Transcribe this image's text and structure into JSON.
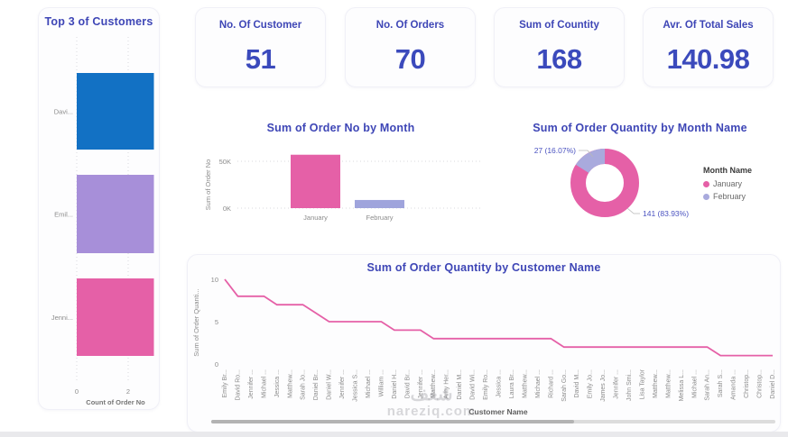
{
  "watermark": {
    "line1": "شغف",
    "line2": "nareziq.com"
  },
  "colors": {
    "title_indigo": "#3e46b6",
    "kpi_value": "#3b4abc",
    "pink": "#e560a7",
    "blue": "#1271c4",
    "purple": "#a78fd9",
    "periwinkle": "#9fa4dc",
    "donut_purple": "#a9aadd",
    "axis_gray": "#8c8c8c",
    "gridline": "#d9d9de",
    "scroll_track": "#dcdcdc",
    "scroll_thumb": "#b3b3b3"
  },
  "kpi_cards": [
    {
      "label": "No. Of Customer",
      "value": "51"
    },
    {
      "label": "No. Of Orders",
      "value": "70"
    },
    {
      "label": "Sum of Countity",
      "value": "168"
    },
    {
      "label": "Avr. Of Total Sales",
      "value": "140.98"
    }
  ],
  "chart_data": [
    {
      "id": "top3-customers",
      "type": "bar",
      "orientation": "horizontal",
      "title": "Top 3 of Customers",
      "categories": [
        "Davi...",
        "Emil...",
        "Jenni..."
      ],
      "values": [
        3,
        3,
        3
      ],
      "bar_colors": [
        "#1271c4",
        "#a78fd9",
        "#e560a7"
      ],
      "xlabel": "Count of Order No",
      "xticks": [
        0,
        2
      ],
      "xlim": [
        0,
        3
      ],
      "grid": "dotted-vertical"
    },
    {
      "id": "order-no-by-month",
      "type": "bar",
      "orientation": "vertical",
      "title": "Sum of Order No by Month",
      "categories": [
        "January",
        "February"
      ],
      "values": [
        57000,
        8700
      ],
      "bar_colors": [
        "#e560a7",
        "#9fa4dc"
      ],
      "ylabel": "Sum of Order No",
      "yticks": [
        {
          "label": "0K",
          "value": 0
        },
        {
          "label": "50K",
          "value": 50000
        }
      ],
      "ylim": [
        0,
        62000
      ],
      "grid": "dotted-horizontal"
    },
    {
      "id": "order-qty-by-month",
      "type": "pie",
      "title": "Sum of Order Quantity by Month Name",
      "legend_title": "Month Name",
      "legend_position": "right",
      "slices": [
        {
          "name": "January",
          "value": 141,
          "pct": 83.93,
          "callout": "141 (83.93%)",
          "color": "#e560a7"
        },
        {
          "name": "February",
          "value": 27,
          "pct": 16.07,
          "callout": "27 (16.07%)",
          "color": "#a9aadd"
        }
      ]
    },
    {
      "id": "order-qty-by-customer",
      "type": "line",
      "title": "Sum of Order Quantity by Customer Name",
      "ylabel": "Sum of Order Quanti...",
      "xlabel": "Customer Name",
      "yticks": [
        0,
        5,
        10
      ],
      "ylim": [
        0,
        10
      ],
      "line_color": "#e560a7",
      "categories": [
        "Emily Br...",
        "David Ro...",
        "Jennifer ...",
        "Michael ...",
        "Jessica ...",
        "Matthew...",
        "Sarah Jo...",
        "Daniel Br...",
        "Daniel W...",
        "Jennifer ...",
        "Jessica S...",
        "Michael ...",
        "William ...",
        "Daniel H...",
        "David Br...",
        "Jennifer ...",
        "Matthew...",
        "Amy Her...",
        "Daniel M...",
        "David Wi...",
        "Emily Ro...",
        "Jessica ...",
        "Laura Br...",
        "Matthew...",
        "Michael ...",
        "Richard ...",
        "Sarah Go...",
        "David M...",
        "Emily Jo...",
        "James Jo...",
        "Jennifer ...",
        "John Smi...",
        "Lisa Taylor",
        "Matthew...",
        "Matthew...",
        "Melissa L...",
        "Michael ...",
        "Sarah An...",
        "Sarah S...",
        "Amanda ...",
        "Christop...",
        "Christop...",
        "Daniel D..."
      ],
      "values": [
        10,
        8,
        8,
        8,
        7,
        7,
        7,
        6,
        5,
        5,
        5,
        5,
        5,
        4,
        4,
        4,
        3,
        3,
        3,
        3,
        3,
        3,
        3,
        3,
        3,
        3,
        2,
        2,
        2,
        2,
        2,
        2,
        2,
        2,
        2,
        2,
        2,
        2,
        1,
        1,
        1,
        1,
        1
      ],
      "has_scrollbar": true
    }
  ]
}
